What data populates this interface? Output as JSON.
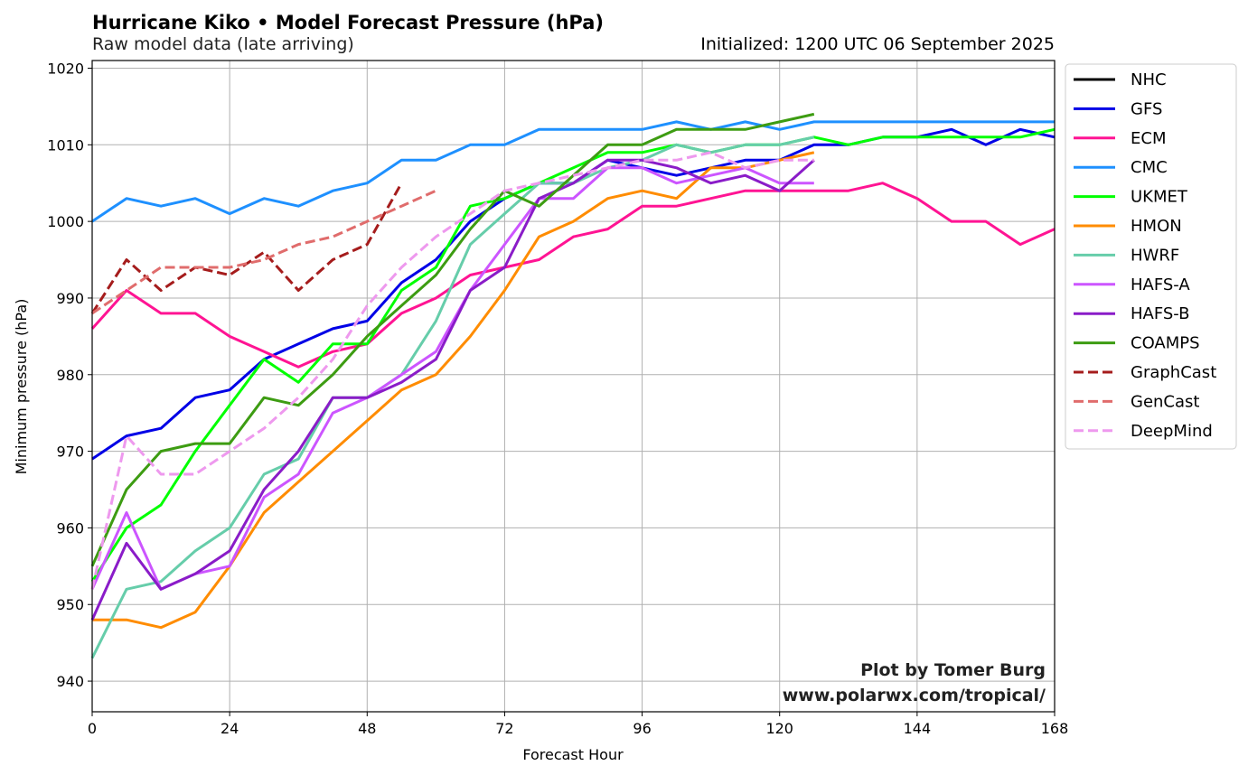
{
  "chart_data": {
    "type": "line",
    "title": "Hurricane Kiko • Model Forecast Pressure (hPa)",
    "subtitle": "Raw model data (late arriving)",
    "initialized": "Initialized: 1200 UTC 06 September 2025",
    "xlabel": "Forecast Hour",
    "ylabel": "Minimum pressure (hPa)",
    "xlim": [
      0,
      168
    ],
    "ylim": [
      936,
      1021
    ],
    "xticks": [
      0,
      24,
      48,
      72,
      96,
      120,
      144,
      168
    ],
    "yticks": [
      940,
      950,
      960,
      970,
      980,
      990,
      1000,
      1010,
      1020
    ],
    "grid": true,
    "legend_position": "outside-right-top",
    "credit_line1": "Plot by Tomer Burg",
    "credit_line2": "www.polarwx.com/tropical/",
    "series": [
      {
        "name": "NHC",
        "color": "#000000",
        "dash": false,
        "x": [],
        "y": []
      },
      {
        "name": "GFS",
        "color": "#0000e6",
        "dash": false,
        "x": [
          0,
          6,
          12,
          18,
          24,
          30,
          36,
          42,
          48,
          54,
          60,
          66,
          72,
          78,
          84,
          90,
          96,
          102,
          108,
          114,
          120,
          126,
          132,
          138,
          144,
          150,
          156,
          162,
          168
        ],
        "y": [
          969,
          972,
          973,
          977,
          978,
          982,
          984,
          986,
          987,
          992,
          995,
          1000,
          1003,
          1005,
          1005,
          1008,
          1007,
          1006,
          1007,
          1008,
          1008,
          1010,
          1010,
          1011,
          1011,
          1012,
          1010,
          1012,
          1011
        ]
      },
      {
        "name": "ECM",
        "color": "#ff1493",
        "dash": false,
        "x": [
          0,
          6,
          12,
          18,
          24,
          30,
          36,
          42,
          48,
          54,
          60,
          66,
          72,
          78,
          84,
          90,
          96,
          102,
          108,
          114,
          120,
          126,
          132,
          138,
          144,
          150,
          156,
          162,
          168
        ],
        "y": [
          986,
          991,
          988,
          988,
          985,
          983,
          981,
          983,
          984,
          988,
          990,
          993,
          994,
          995,
          998,
          999,
          1002,
          1002,
          1003,
          1004,
          1004,
          1004,
          1004,
          1005,
          1003,
          1000,
          1000,
          997,
          999
        ]
      },
      {
        "name": "CMC",
        "color": "#1e90ff",
        "dash": false,
        "x": [
          0,
          6,
          12,
          18,
          24,
          30,
          36,
          42,
          48,
          54,
          60,
          66,
          72,
          78,
          84,
          90,
          96,
          102,
          108,
          114,
          120,
          126,
          132,
          138,
          144,
          150,
          156,
          162,
          168
        ],
        "y": [
          1000,
          1003,
          1002,
          1003,
          1001,
          1003,
          1002,
          1004,
          1005,
          1008,
          1008,
          1010,
          1010,
          1012,
          1012,
          1012,
          1012,
          1013,
          1012,
          1013,
          1012,
          1013,
          1013,
          1013,
          1013,
          1013,
          1013,
          1013,
          1013
        ]
      },
      {
        "name": "UKMET",
        "color": "#00ff00",
        "dash": false,
        "x": [
          0,
          6,
          12,
          18,
          24,
          30,
          36,
          42,
          48,
          54,
          60,
          66,
          72,
          78,
          84,
          90,
          96,
          102,
          108,
          114,
          120,
          126,
          132,
          138,
          144,
          150,
          156,
          162,
          168
        ],
        "y": [
          953,
          960,
          963,
          970,
          976,
          982,
          979,
          984,
          984,
          991,
          994,
          1002,
          1003,
          1005,
          1007,
          1009,
          1009,
          1010,
          1009,
          1010,
          1010,
          1011,
          1010,
          1011,
          1011,
          1011,
          1011,
          1011,
          1012
        ]
      },
      {
        "name": "HMON",
        "color": "#ff8c00",
        "dash": false,
        "x": [
          0,
          6,
          12,
          18,
          24,
          30,
          36,
          42,
          48,
          54,
          60,
          66,
          72,
          78,
          84,
          90,
          96,
          102,
          108,
          114,
          120,
          126
        ],
        "y": [
          948,
          948,
          947,
          949,
          955,
          962,
          966,
          970,
          974,
          978,
          980,
          985,
          991,
          998,
          1000,
          1003,
          1004,
          1003,
          1007,
          1007,
          1008,
          1009
        ]
      },
      {
        "name": "HWRF",
        "color": "#66cdaa",
        "dash": false,
        "x": [
          0,
          6,
          12,
          18,
          24,
          30,
          36,
          42,
          48,
          54,
          60,
          66,
          72,
          78,
          84,
          90,
          96,
          102,
          108,
          114,
          120,
          126
        ],
        "y": [
          943,
          952,
          953,
          957,
          960,
          967,
          969,
          977,
          977,
          980,
          987,
          997,
          1001,
          1005,
          1005,
          1007,
          1008,
          1010,
          1009,
          1010,
          1010,
          1011
        ]
      },
      {
        "name": "HAFS-A",
        "color": "#cc55ff",
        "dash": false,
        "x": [
          0,
          6,
          12,
          18,
          24,
          30,
          36,
          42,
          48,
          54,
          60,
          66,
          72,
          78,
          84,
          90,
          96,
          102,
          108,
          114,
          120,
          126
        ],
        "y": [
          952,
          962,
          952,
          954,
          955,
          964,
          967,
          975,
          977,
          980,
          983,
          991,
          997,
          1003,
          1003,
          1007,
          1007,
          1005,
          1006,
          1007,
          1005,
          1005
        ]
      },
      {
        "name": "HAFS-B",
        "color": "#8a1cc8",
        "dash": false,
        "x": [
          0,
          6,
          12,
          18,
          24,
          30,
          36,
          42,
          48,
          54,
          60,
          66,
          72,
          78,
          84,
          90,
          96,
          102,
          108,
          114,
          120,
          126
        ],
        "y": [
          948,
          958,
          952,
          954,
          957,
          965,
          970,
          977,
          977,
          979,
          982,
          991,
          994,
          1003,
          1005,
          1008,
          1008,
          1007,
          1005,
          1006,
          1004,
          1008
        ]
      },
      {
        "name": "COAMPS",
        "color": "#3d9c12",
        "dash": false,
        "x": [
          0,
          6,
          12,
          18,
          24,
          30,
          36,
          42,
          48,
          54,
          60,
          66,
          72,
          78,
          84,
          90,
          96,
          102,
          108,
          114,
          120,
          126
        ],
        "y": [
          955,
          965,
          970,
          971,
          971,
          977,
          976,
          980,
          985,
          989,
          993,
          999,
          1004,
          1002,
          1006,
          1010,
          1010,
          1012,
          1012,
          1012,
          1013,
          1014
        ]
      },
      {
        "name": "GraphCast",
        "color": "#a51c1c",
        "dash": true,
        "x": [
          0,
          6,
          12,
          18,
          24,
          30,
          36,
          42,
          48,
          54
        ],
        "y": [
          988,
          995,
          991,
          994,
          993,
          996,
          991,
          995,
          997,
          1005
        ]
      },
      {
        "name": "GenCast",
        "color": "#e06c6c",
        "dash": true,
        "x": [
          0,
          6,
          12,
          18,
          24,
          30,
          36,
          42,
          48,
          54,
          60
        ],
        "y": [
          988,
          991,
          994,
          994,
          994,
          995,
          997,
          998,
          1000,
          1002,
          1004
        ]
      },
      {
        "name": "DeepMind",
        "color": "#ee99ee",
        "dash": true,
        "x": [
          0,
          6,
          12,
          18,
          24,
          30,
          36,
          42,
          48,
          54,
          60,
          66,
          72,
          78,
          84,
          90,
          96,
          102,
          108,
          114,
          120,
          126
        ],
        "y": [
          952,
          972,
          967,
          967,
          970,
          973,
          977,
          982,
          989,
          994,
          998,
          1001,
          1004,
          1005,
          1006,
          1007,
          1008,
          1008,
          1009,
          1007,
          1008,
          1008
        ]
      }
    ]
  }
}
